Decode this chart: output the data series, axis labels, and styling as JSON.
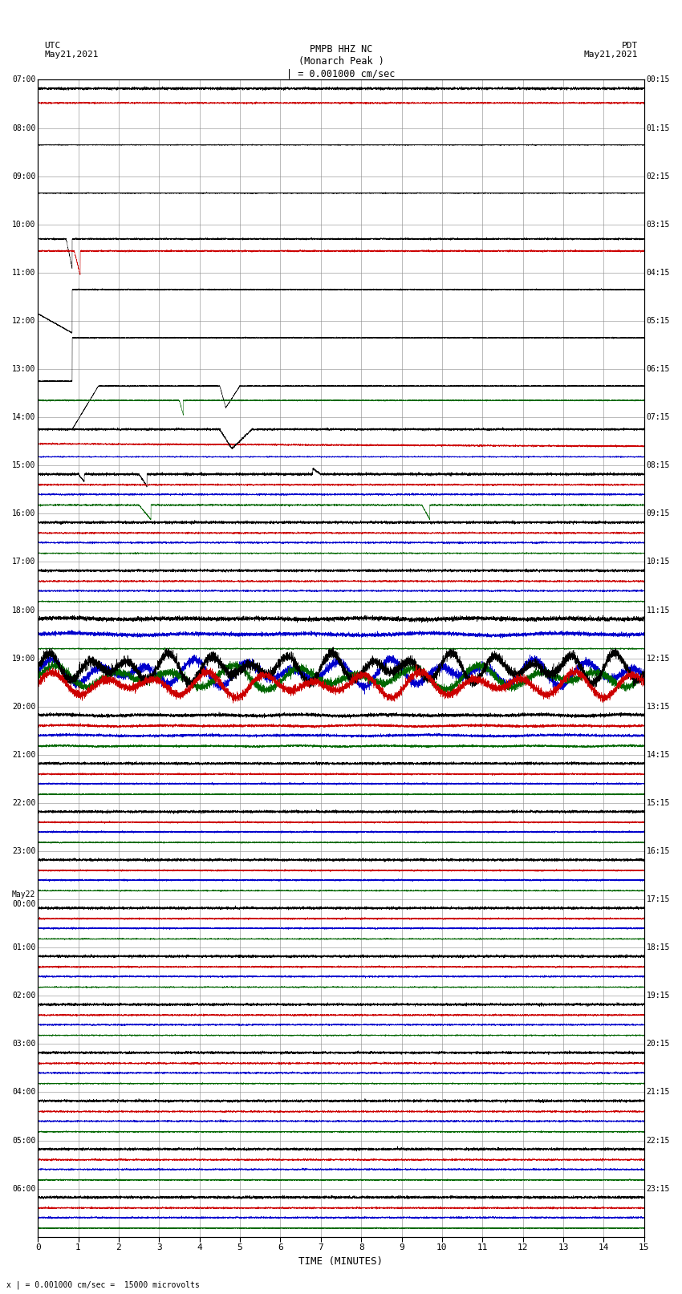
{
  "title_line1": "PMPB HHZ NC",
  "title_line2": "(Monarch Peak )",
  "title_scale": "| = 0.001000 cm/sec",
  "left_label": "UTC\nMay21,2021",
  "right_label": "PDT\nMay21,2021",
  "bottom_label": "x | = 0.001000 cm/sec =  15000 microvolts",
  "xlabel": "TIME (MINUTES)",
  "xlim": [
    0,
    15
  ],
  "xticks": [
    0,
    1,
    2,
    3,
    4,
    5,
    6,
    7,
    8,
    9,
    10,
    11,
    12,
    13,
    14,
    15
  ],
  "bg_color": "#ffffff",
  "grid_color": "#888888",
  "n_rows": 24,
  "utc_times": [
    "07:00",
    "08:00",
    "09:00",
    "10:00",
    "11:00",
    "12:00",
    "13:00",
    "14:00",
    "15:00",
    "16:00",
    "17:00",
    "18:00",
    "19:00",
    "20:00",
    "21:00",
    "22:00",
    "23:00",
    "May22\n00:00",
    "01:00",
    "02:00",
    "03:00",
    "04:00",
    "05:00",
    "06:00"
  ],
  "pdt_times": [
    "00:15",
    "01:15",
    "02:15",
    "03:15",
    "04:15",
    "05:15",
    "06:15",
    "07:15",
    "08:15",
    "09:15",
    "10:15",
    "11:15",
    "12:15",
    "13:15",
    "14:15",
    "15:15",
    "16:15",
    "17:15",
    "18:15",
    "19:15",
    "20:15",
    "21:15",
    "22:15",
    "23:15"
  ],
  "sub_trace_offsets": [
    0.0,
    -0.22,
    -0.44,
    -0.66
  ],
  "sub_trace_colors": [
    "#000000",
    "#cc0000",
    "#0000cc",
    "#006600"
  ],
  "sub_trace_amps": [
    0.06,
    0.04,
    0.04,
    0.04
  ],
  "lw": 0.35
}
